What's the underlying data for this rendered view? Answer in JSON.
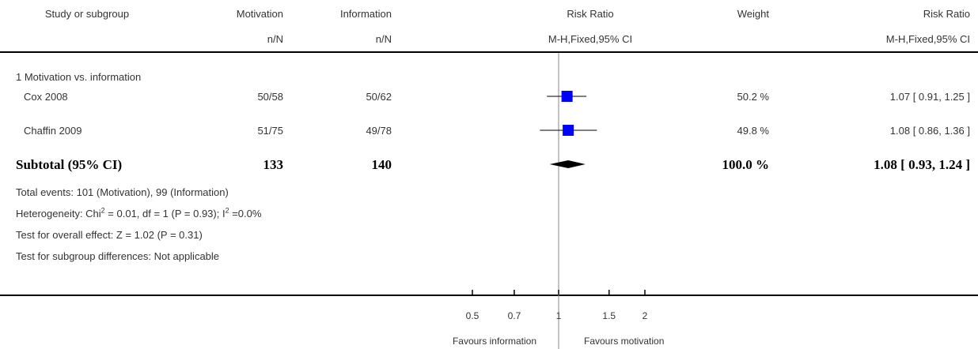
{
  "header": {
    "study": "Study or subgroup",
    "group1": "Motivation",
    "group2": "Information",
    "effect": "Risk Ratio",
    "weight": "Weight",
    "effect_ci": "Risk Ratio",
    "group1_sub": "n/N",
    "group2_sub": "n/N",
    "effect_sub": "M-H,Fixed,95% CI",
    "effect_ci_sub": "M-H,Fixed,95% CI"
  },
  "subgroup_title": "1 Motivation vs. information",
  "studies": [
    {
      "name": "Cox 2008",
      "g1": "50/58",
      "g2": "50/62",
      "weight": "50.2 %",
      "ci_text": "1.07 [ 0.91, 1.25 ]"
    },
    {
      "name": "Chaffin 2009",
      "g1": "51/75",
      "g2": "49/78",
      "weight": "49.8 %",
      "ci_text": "1.08 [ 0.86, 1.36 ]"
    }
  ],
  "subtotal": {
    "label": "Subtotal (95% CI)",
    "g1": "133",
    "g2": "140",
    "weight": "100.0 %",
    "ci_text": "1.08 [ 0.93, 1.24 ]"
  },
  "notes": {
    "events": "Total events: 101 (Motivation), 99 (Information)",
    "het_a": "Heterogeneity: Chi",
    "het_sup1": "2",
    "het_b": " = 0.01, df = 1 (P = 0.93); I",
    "het_sup2": "2",
    "het_c": " =0.0%",
    "overall": "Test for overall effect: Z = 1.02 (P = 0.31)",
    "subgroup_diff": "Test for subgroup differences: Not applicable"
  },
  "axis": {
    "favours_left": "Favours information",
    "favours_right": "Favours motivation"
  },
  "colors": {
    "marker": "#0000ff",
    "diamond": "#000000",
    "line": "#000000"
  },
  "chart_data": {
    "type": "forest",
    "scale": "log",
    "xlim": [
      0.5,
      2
    ],
    "ticks": [
      0.5,
      0.7,
      1,
      1.5,
      2
    ],
    "tick_labels": [
      "0.5",
      "0.7",
      "1",
      "1.5",
      "2"
    ],
    "null_value": 1,
    "studies": [
      {
        "name": "Cox 2008",
        "estimate": 1.07,
        "lower": 0.91,
        "upper": 1.25,
        "weight": 50.2
      },
      {
        "name": "Chaffin 2009",
        "estimate": 1.08,
        "lower": 0.86,
        "upper": 1.36,
        "weight": 49.8
      }
    ],
    "pooled": {
      "estimate": 1.08,
      "lower": 0.93,
      "upper": 1.24
    }
  }
}
